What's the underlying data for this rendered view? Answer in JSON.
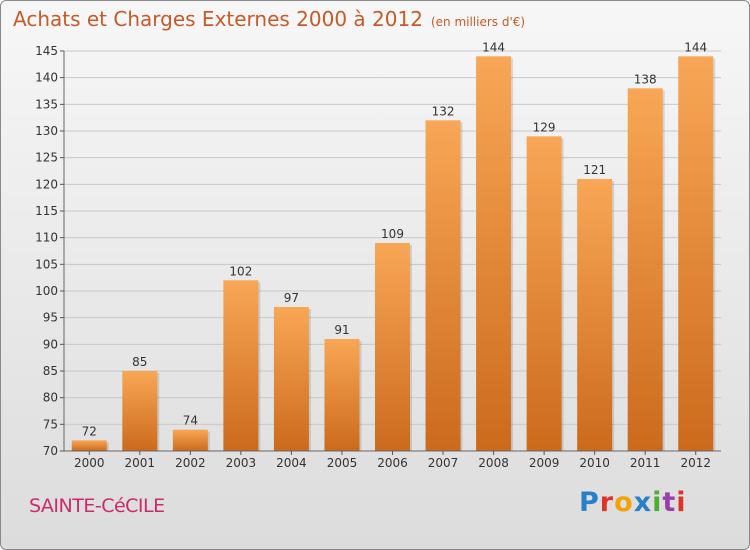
{
  "header": {
    "title": "Achats et Charges Externes 2000 à 2012",
    "subtitle": "(en milliers d'€)"
  },
  "footer": {
    "commune": "SAINTE-CéCILE",
    "brand": "Proxiti",
    "brand_colors": [
      "#2a7fc9",
      "#e0312b",
      "#f4a20a",
      "#2a7fc9",
      "#4caf32",
      "#9c3fae",
      "#e0312b"
    ]
  },
  "colors": {
    "bar_light": "#f8a756",
    "bar_dark": "#cc6a1c",
    "title": "#c65a2a",
    "commune": "#cc2a6a"
  },
  "chart_data": {
    "type": "bar",
    "categories": [
      "2000",
      "2001",
      "2002",
      "2003",
      "2004",
      "2005",
      "2006",
      "2007",
      "2008",
      "2009",
      "2010",
      "2011",
      "2012"
    ],
    "values": [
      72,
      85,
      74,
      102,
      97,
      91,
      109,
      132,
      144,
      129,
      121,
      138,
      144
    ],
    "data_labels": [
      "72",
      "85",
      "74",
      "102",
      "97",
      "91",
      "109",
      "132",
      "144",
      "129",
      "121",
      "138",
      "144"
    ],
    "title": "Achats et Charges Externes 2000 à 2012",
    "xlabel": "",
    "ylabel": "",
    "ylim": [
      70,
      145
    ],
    "yticks": [
      70,
      75,
      80,
      85,
      90,
      95,
      100,
      105,
      110,
      115,
      120,
      125,
      130,
      135,
      140,
      145
    ],
    "grid": true
  }
}
